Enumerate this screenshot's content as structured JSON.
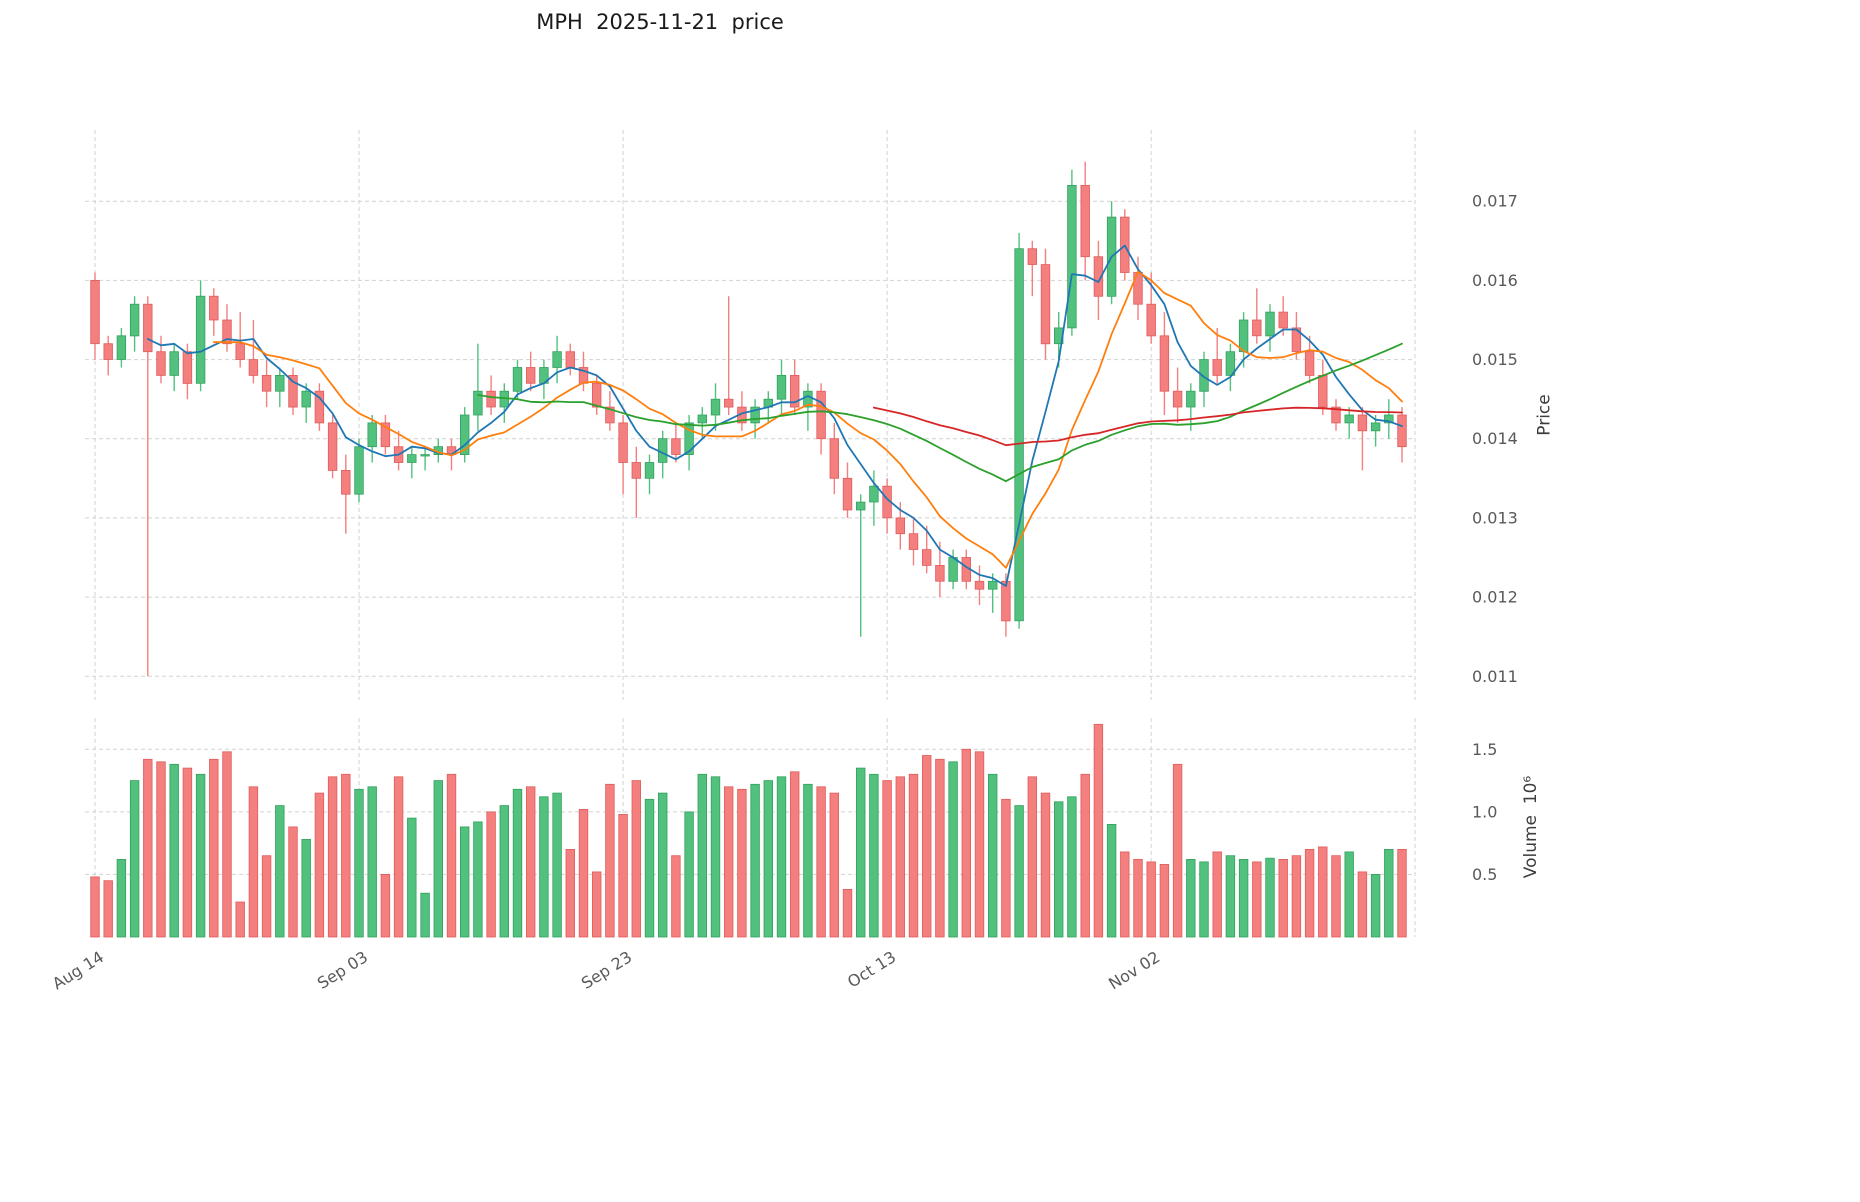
{
  "title": "MPH  2025-11-21  price",
  "colors": {
    "up": "#53c17e",
    "up_edge": "#33a05e",
    "down": "#f37f7f",
    "down_edge": "#e05c5c",
    "grid": "#d2d2d2",
    "tick": "#595959",
    "title_text": "#1a1a1a"
  },
  "chart_data": {
    "type": "candlestick",
    "title": "MPH  2025-11-21  price",
    "ticker": "MPH",
    "as_of_date": "2025-11-21",
    "price_axis": {
      "label": "Price",
      "ticks": [
        0.011,
        0.012,
        0.013,
        0.014,
        0.015,
        0.016,
        0.017
      ],
      "ylim": [
        0.0107,
        0.0179
      ]
    },
    "volume_axis": {
      "label": "Volume  10⁶",
      "ticks": [
        0.5,
        1.0,
        1.5
      ],
      "ylim": [
        0,
        1.75
      ]
    },
    "x_axis": {
      "tick_labels": [
        "Aug 14",
        "Sep 03",
        "Sep 23",
        "Oct 13",
        "Nov 02"
      ],
      "tick_indices": [
        0,
        20,
        40,
        60,
        80
      ]
    },
    "candles_format": [
      "open",
      "high",
      "low",
      "close",
      "volume_millions"
    ],
    "candles": [
      [
        0.016,
        0.0161,
        0.015,
        0.0152,
        0.48
      ],
      [
        0.0152,
        0.0153,
        0.0148,
        0.015,
        0.45
      ],
      [
        0.015,
        0.0154,
        0.0149,
        0.0153,
        0.62
      ],
      [
        0.0153,
        0.0158,
        0.0151,
        0.0157,
        1.25
      ],
      [
        0.0157,
        0.0158,
        0.011,
        0.0151,
        1.42
      ],
      [
        0.0151,
        0.0153,
        0.0147,
        0.0148,
        1.4
      ],
      [
        0.0148,
        0.0152,
        0.0146,
        0.0151,
        1.38
      ],
      [
        0.0151,
        0.0152,
        0.0145,
        0.0147,
        1.35
      ],
      [
        0.0147,
        0.016,
        0.0146,
        0.0158,
        1.3
      ],
      [
        0.0158,
        0.0159,
        0.0153,
        0.0155,
        1.42
      ],
      [
        0.0155,
        0.0157,
        0.0151,
        0.0152,
        1.48
      ],
      [
        0.0152,
        0.0156,
        0.0149,
        0.015,
        0.28
      ],
      [
        0.015,
        0.0155,
        0.0147,
        0.0148,
        1.2
      ],
      [
        0.0148,
        0.015,
        0.0144,
        0.0146,
        0.65
      ],
      [
        0.0146,
        0.0149,
        0.0144,
        0.0148,
        1.05
      ],
      [
        0.0148,
        0.0149,
        0.0143,
        0.0144,
        0.88
      ],
      [
        0.0144,
        0.0147,
        0.0142,
        0.0146,
        0.78
      ],
      [
        0.0146,
        0.0147,
        0.0141,
        0.0142,
        1.15
      ],
      [
        0.0142,
        0.0143,
        0.0135,
        0.0136,
        1.28
      ],
      [
        0.0136,
        0.0138,
        0.0128,
        0.0133,
        1.3
      ],
      [
        0.0133,
        0.014,
        0.0132,
        0.0139,
        1.18
      ],
      [
        0.0139,
        0.0143,
        0.0137,
        0.0142,
        1.2
      ],
      [
        0.0142,
        0.0143,
        0.0138,
        0.0139,
        0.5
      ],
      [
        0.0139,
        0.0141,
        0.0136,
        0.0137,
        1.28
      ],
      [
        0.0137,
        0.0139,
        0.0135,
        0.0138,
        0.95
      ],
      [
        0.0138,
        0.0139,
        0.0136,
        0.0138,
        0.35
      ],
      [
        0.0138,
        0.014,
        0.0137,
        0.0139,
        1.25
      ],
      [
        0.0139,
        0.014,
        0.0136,
        0.0138,
        1.3
      ],
      [
        0.0138,
        0.0144,
        0.0137,
        0.0143,
        0.88
      ],
      [
        0.0143,
        0.0152,
        0.0141,
        0.0146,
        0.92
      ],
      [
        0.0146,
        0.0148,
        0.0143,
        0.0144,
        1.0
      ],
      [
        0.0144,
        0.0147,
        0.0142,
        0.0146,
        1.05
      ],
      [
        0.0146,
        0.015,
        0.0145,
        0.0149,
        1.18
      ],
      [
        0.0149,
        0.0151,
        0.0146,
        0.0147,
        1.2
      ],
      [
        0.0147,
        0.015,
        0.0145,
        0.0149,
        1.12
      ],
      [
        0.0149,
        0.0153,
        0.0147,
        0.0151,
        1.15
      ],
      [
        0.0151,
        0.0152,
        0.0148,
        0.0149,
        0.7
      ],
      [
        0.0149,
        0.0151,
        0.0146,
        0.0147,
        1.02
      ],
      [
        0.0147,
        0.0148,
        0.0143,
        0.0144,
        0.52
      ],
      [
        0.0144,
        0.0146,
        0.0141,
        0.0142,
        1.22
      ],
      [
        0.0142,
        0.0143,
        0.0133,
        0.0137,
        0.98
      ],
      [
        0.0137,
        0.0139,
        0.013,
        0.0135,
        1.25
      ],
      [
        0.0135,
        0.0138,
        0.0133,
        0.0137,
        1.1
      ],
      [
        0.0137,
        0.0141,
        0.0135,
        0.014,
        1.15
      ],
      [
        0.014,
        0.0142,
        0.0137,
        0.0138,
        0.65
      ],
      [
        0.0138,
        0.0143,
        0.0136,
        0.0142,
        1.0
      ],
      [
        0.0142,
        0.0144,
        0.014,
        0.0143,
        1.3
      ],
      [
        0.0143,
        0.0147,
        0.0141,
        0.0145,
        1.28
      ],
      [
        0.0145,
        0.0158,
        0.0143,
        0.0144,
        1.2
      ],
      [
        0.0144,
        0.0146,
        0.0141,
        0.0142,
        1.18
      ],
      [
        0.0142,
        0.0145,
        0.014,
        0.0144,
        1.22
      ],
      [
        0.0144,
        0.0146,
        0.0142,
        0.0145,
        1.25
      ],
      [
        0.0145,
        0.015,
        0.0143,
        0.0148,
        1.28
      ],
      [
        0.0148,
        0.015,
        0.0143,
        0.0144,
        1.32
      ],
      [
        0.0144,
        0.0147,
        0.0141,
        0.0146,
        1.22
      ],
      [
        0.0146,
        0.0147,
        0.0138,
        0.014,
        1.2
      ],
      [
        0.014,
        0.0142,
        0.0133,
        0.0135,
        1.15
      ],
      [
        0.0135,
        0.0137,
        0.013,
        0.0131,
        0.38
      ],
      [
        0.0131,
        0.0133,
        0.0115,
        0.0132,
        1.35
      ],
      [
        0.0132,
        0.0136,
        0.0129,
        0.0134,
        1.3
      ],
      [
        0.0134,
        0.0135,
        0.0128,
        0.013,
        1.25
      ],
      [
        0.013,
        0.0132,
        0.0126,
        0.0128,
        1.28
      ],
      [
        0.0128,
        0.013,
        0.0124,
        0.0126,
        1.3
      ],
      [
        0.0126,
        0.0129,
        0.0123,
        0.0124,
        1.45
      ],
      [
        0.0124,
        0.0127,
        0.012,
        0.0122,
        1.42
      ],
      [
        0.0122,
        0.0126,
        0.0121,
        0.0125,
        1.4
      ],
      [
        0.0125,
        0.0126,
        0.0121,
        0.0122,
        1.5
      ],
      [
        0.0122,
        0.0124,
        0.0119,
        0.0121,
        1.48
      ],
      [
        0.0121,
        0.0123,
        0.0118,
        0.0122,
        1.3
      ],
      [
        0.0122,
        0.0123,
        0.0115,
        0.0117,
        1.1
      ],
      [
        0.0117,
        0.0166,
        0.0116,
        0.0164,
        1.05
      ],
      [
        0.0164,
        0.0165,
        0.0158,
        0.0162,
        1.28
      ],
      [
        0.0162,
        0.0164,
        0.015,
        0.0152,
        1.15
      ],
      [
        0.0152,
        0.0156,
        0.0149,
        0.0154,
        1.08
      ],
      [
        0.0154,
        0.0174,
        0.0153,
        0.0172,
        1.12
      ],
      [
        0.0172,
        0.0175,
        0.016,
        0.0163,
        1.3
      ],
      [
        0.0163,
        0.0165,
        0.0155,
        0.0158,
        1.7
      ],
      [
        0.0158,
        0.017,
        0.0157,
        0.0168,
        0.9
      ],
      [
        0.0168,
        0.0169,
        0.016,
        0.0161,
        0.68
      ],
      [
        0.0161,
        0.0163,
        0.0155,
        0.0157,
        0.62
      ],
      [
        0.0157,
        0.0161,
        0.0152,
        0.0153,
        0.6
      ],
      [
        0.0153,
        0.0156,
        0.0143,
        0.0146,
        0.58
      ],
      [
        0.0146,
        0.0149,
        0.0142,
        0.0144,
        1.38
      ],
      [
        0.0144,
        0.0147,
        0.0141,
        0.0146,
        0.62
      ],
      [
        0.0146,
        0.0151,
        0.0144,
        0.015,
        0.6
      ],
      [
        0.015,
        0.0154,
        0.0147,
        0.0148,
        0.68
      ],
      [
        0.0148,
        0.0152,
        0.0146,
        0.0151,
        0.65
      ],
      [
        0.0151,
        0.0156,
        0.0149,
        0.0155,
        0.62
      ],
      [
        0.0155,
        0.0159,
        0.0152,
        0.0153,
        0.6
      ],
      [
        0.0153,
        0.0157,
        0.0151,
        0.0156,
        0.63
      ],
      [
        0.0156,
        0.0158,
        0.0153,
        0.0154,
        0.62
      ],
      [
        0.0154,
        0.0156,
        0.015,
        0.0151,
        0.65
      ],
      [
        0.0151,
        0.0153,
        0.0147,
        0.0148,
        0.7
      ],
      [
        0.0148,
        0.015,
        0.0143,
        0.0144,
        0.72
      ],
      [
        0.0144,
        0.0145,
        0.0141,
        0.0142,
        0.65
      ],
      [
        0.0142,
        0.0144,
        0.014,
        0.0143,
        0.68
      ],
      [
        0.0143,
        0.0144,
        0.0136,
        0.0141,
        0.52
      ],
      [
        0.0141,
        0.0143,
        0.0139,
        0.0142,
        0.5
      ],
      [
        0.0142,
        0.0145,
        0.014,
        0.0143,
        0.7
      ],
      [
        0.0143,
        0.0144,
        0.0137,
        0.0139,
        0.7
      ]
    ],
    "moving_averages": [
      {
        "name": "MA5",
        "window": 5,
        "color": "#1f77b4"
      },
      {
        "name": "MA10",
        "window": 10,
        "color": "#ff7f0e"
      },
      {
        "name": "MA30",
        "window": 30,
        "color": "#2ca02c"
      },
      {
        "name": "MA60",
        "window": 60,
        "color": "#d62728"
      }
    ],
    "grid": true,
    "legend": false
  }
}
